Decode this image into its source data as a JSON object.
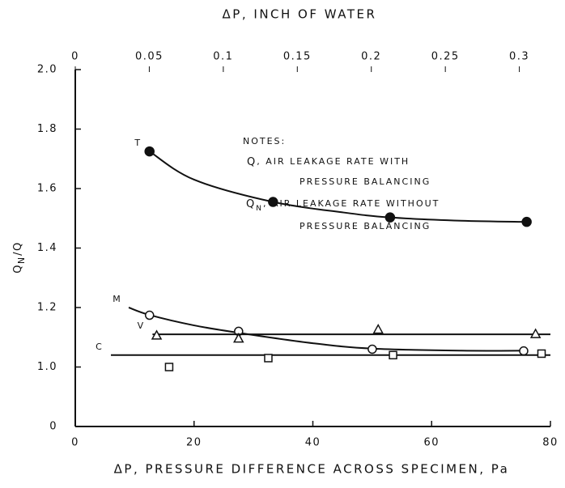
{
  "chart_data": {
    "type": "line",
    "title": "ΔP, INCH OF WATER",
    "x_label": "ΔP, PRESSURE DIFFERENCE ACROSS SPECIMEN, Pa",
    "y_label": {
      "symbol": "Q",
      "subscript": "N",
      "rest": "/Q"
    },
    "notes": {
      "heading": "NOTES:",
      "lines": [
        {
          "symbol": "Q",
          "subscript": "",
          "text": ", AIR LEAKAGE RATE WITH"
        },
        {
          "symbol": "",
          "subscript": "",
          "text": "PRESSURE BALANCING"
        },
        {
          "symbol": "Q",
          "subscript": "N",
          "text": ", AIR LEAKAGE RATE WITHOUT"
        },
        {
          "symbol": "",
          "subscript": "",
          "text": "PRESSURE BALANCING"
        }
      ]
    },
    "xlim": [
      0,
      80
    ],
    "xticks": [
      0,
      20,
      40,
      60,
      80
    ],
    "x2lim": [
      0,
      0.321
    ],
    "x2ticks": [
      0,
      0.05,
      0.1,
      0.15,
      0.2,
      0.25,
      0.3
    ],
    "ylim": [
      0,
      2
    ],
    "yticks": [
      0,
      {
        "value": 1,
        "label": "1.0"
      },
      1.2,
      1.4,
      1.6,
      1.8,
      {
        "value": 2,
        "label": "2.0"
      }
    ],
    "series": [
      {
        "name": "T",
        "marker": "filled-circle",
        "color": "#111",
        "x": [
          12.5,
          33.3,
          53,
          76
        ],
        "values": [
          1.725,
          1.555,
          1.503,
          1.488
        ],
        "fit_x": [
          12.5,
          20,
          33.3,
          45,
          53,
          65,
          76
        ],
        "fit_y": [
          1.725,
          1.63,
          1.555,
          1.52,
          1.503,
          1.492,
          1.488
        ]
      },
      {
        "name": "M",
        "marker": "open-circle",
        "color": "#111",
        "x": [
          12.5,
          27.5,
          50,
          75.5
        ],
        "values": [
          1.174,
          1.12,
          1.06,
          1.054
        ],
        "fit_x": [
          9,
          12.5,
          20,
          27.5,
          40,
          50,
          65,
          76
        ],
        "fit_y": [
          1.2,
          1.175,
          1.14,
          1.115,
          1.08,
          1.062,
          1.055,
          1.055
        ]
      },
      {
        "name": "V",
        "marker": "triangle",
        "color": "#111",
        "x": [
          13.7,
          27.5,
          51,
          77.5
        ],
        "values": [
          1.105,
          1.095,
          1.125,
          1.11
        ],
        "fit_x": [
          13,
          80
        ],
        "fit_y": [
          1.11,
          1.11
        ]
      },
      {
        "name": "C",
        "marker": "square",
        "color": "#111",
        "x": [
          15.8,
          32.5,
          53.5,
          78.5
        ],
        "values": [
          1.0,
          1.03,
          1.04,
          1.045
        ],
        "fit_x": [
          6,
          80
        ],
        "fit_y": [
          1.04,
          1.04
        ]
      }
    ]
  }
}
